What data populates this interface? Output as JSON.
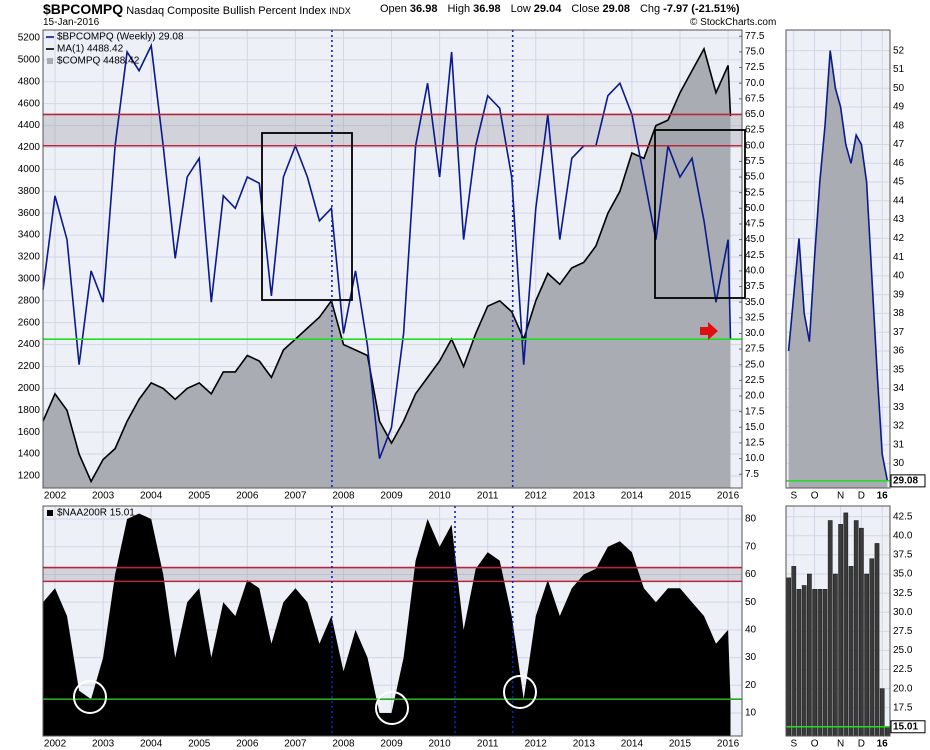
{
  "header": {
    "title": "$BPCOMPQ",
    "subtitle": "Nasdaq Composite Bullish Percent Index",
    "exchange": "INDX",
    "date": "15-Jan-2016",
    "quote": [
      {
        "label": "Open",
        "value": 36.98
      },
      {
        "label": "High",
        "value": 36.98
      },
      {
        "label": "Low",
        "value": 29.04
      },
      {
        "label": "Close",
        "value": 29.08
      },
      {
        "label": "Chg",
        "value": "-7.97 (-21.51%)"
      }
    ],
    "credit": "© StockCharts.com"
  },
  "chart_data": [
    {
      "type": "line",
      "legend": "upper left",
      "grid": true,
      "x": [
        2001.75,
        2002,
        2002.25,
        2002.5,
        2002.75,
        2003,
        2003.25,
        2003.5,
        2003.75,
        2004,
        2004.25,
        2004.5,
        2004.75,
        2005,
        2005.25,
        2005.5,
        2005.75,
        2006,
        2006.25,
        2006.5,
        2006.75,
        2007,
        2007.25,
        2007.5,
        2007.75,
        2008,
        2008.25,
        2008.5,
        2008.75,
        2009,
        2009.25,
        2009.5,
        2009.75,
        2010,
        2010.25,
        2010.5,
        2010.75,
        2011,
        2011.25,
        2011.5,
        2011.75,
        2012,
        2012.25,
        2012.5,
        2012.75,
        2013,
        2013.25,
        2013.5,
        2013.75,
        2014,
        2014.25,
        2014.5,
        2014.75,
        2015,
        2015.25,
        2015.5,
        2015.75,
        2016,
        2016.05
      ],
      "xlim": [
        2001.75,
        2016.29
      ],
      "xticks": [
        2002,
        2003,
        2004,
        2005,
        2006,
        2007,
        2008,
        2009,
        2010,
        2011,
        2012,
        2013,
        2014,
        2015,
        2016
      ],
      "ylim": [
        1090,
        5273
      ],
      "yticks": [
        1200,
        1400,
        1600,
        1800,
        2000,
        2200,
        2400,
        2600,
        2800,
        3000,
        3200,
        3400,
        3600,
        3800,
        4000,
        4200,
        4400,
        4600,
        4800,
        5000,
        5200
      ],
      "y2lim": [
        5.3,
        78.5
      ],
      "y2ticks": [
        7.5,
        {
          "value": 10,
          "label": "10.0"
        },
        12.5,
        {
          "value": 15,
          "label": "15.0"
        },
        17.5,
        {
          "value": 20,
          "label": "20.0"
        },
        22.5,
        {
          "value": 25,
          "label": "25.0"
        },
        27.5,
        {
          "value": 30,
          "label": "30.0"
        },
        32.5,
        {
          "value": 35,
          "label": "35.0"
        },
        37.5,
        {
          "value": 40,
          "label": "40.0"
        },
        42.5,
        {
          "value": 45,
          "label": "45.0"
        },
        47.5,
        {
          "value": 50,
          "label": "50.0"
        },
        52.5,
        {
          "value": 55,
          "label": "55.0"
        },
        57.5,
        {
          "value": 60,
          "label": "60.0"
        },
        62.5,
        {
          "value": 65,
          "label": "65.0"
        },
        67.5,
        {
          "value": 70,
          "label": "70.0"
        },
        72.5,
        {
          "value": 75,
          "label": "75.0"
        },
        77.5
      ],
      "bands": [
        {
          "from": 60,
          "to": 65,
          "axis": "y2",
          "color": "#9a9ca4"
        }
      ],
      "hlines": [
        {
          "value": 65,
          "axis": "y2",
          "color": "#b5283c"
        },
        {
          "value": 60,
          "axis": "y2",
          "color": "#b5283c"
        },
        {
          "value": 29.08,
          "axis": "y2",
          "color": "#22dd22"
        }
      ],
      "vlines": [
        2007.76,
        2011.52
      ],
      "series": [
        {
          "name": "$COMPQ 4488.42",
          "style": "area",
          "color": "#a9adb3",
          "axis": "y",
          "values": [
            1700,
            1950,
            1800,
            1400,
            1150,
            1350,
            1450,
            1700,
            1900,
            2050,
            2000,
            1900,
            2000,
            2050,
            1950,
            2150,
            2150,
            2300,
            2250,
            2100,
            2350,
            2450,
            2550,
            2650,
            2800,
            2400,
            2350,
            2300,
            1700,
            1500,
            1700,
            1950,
            2100,
            2250,
            2450,
            2200,
            2500,
            2750,
            2800,
            2700,
            2450,
            2800,
            3050,
            2950,
            3100,
            3150,
            3300,
            3600,
            3800,
            4150,
            4100,
            4400,
            4450,
            4700,
            4900,
            5100,
            4700,
            4950,
            4488.42
          ]
        },
        {
          "name": "MA(1) 4488.42",
          "style": "line",
          "color": "#000000",
          "axis": "y",
          "values": [
            1700,
            1950,
            1800,
            1400,
            1150,
            1350,
            1450,
            1700,
            1900,
            2050,
            2000,
            1900,
            2000,
            2050,
            1950,
            2150,
            2150,
            2300,
            2250,
            2100,
            2350,
            2450,
            2550,
            2650,
            2800,
            2400,
            2350,
            2300,
            1700,
            1500,
            1700,
            1950,
            2100,
            2250,
            2450,
            2200,
            2500,
            2750,
            2800,
            2700,
            2450,
            2800,
            3050,
            2950,
            3100,
            3150,
            3300,
            3600,
            3800,
            4150,
            4100,
            4400,
            4450,
            4700,
            4900,
            5100,
            4700,
            4950,
            4488.42
          ]
        },
        {
          "name": "$BPCOMPQ (Weekly) 29.08",
          "style": "line",
          "color": "#0a1a8c",
          "axis": "y2",
          "values": [
            37,
            52,
            45,
            25,
            40,
            35,
            60,
            75,
            72,
            76,
            60,
            42,
            55,
            58,
            35,
            52,
            50,
            55,
            54,
            36,
            55,
            60,
            55,
            48,
            50,
            30,
            40,
            28,
            10,
            15,
            30,
            60,
            70,
            55,
            75,
            45,
            60,
            68,
            66,
            55,
            25,
            50,
            65,
            45,
            58,
            60,
            60,
            68,
            70,
            65,
            55,
            45,
            60,
            55,
            58,
            48,
            35,
            45,
            29.08
          ]
        }
      ]
    },
    {
      "type": "line",
      "grid": true,
      "last_value_tag": true,
      "categories": [
        null,
        "S",
        null,
        null,
        null,
        "O",
        null,
        null,
        null,
        null,
        "N",
        null,
        null,
        null,
        "D",
        null,
        null,
        null,
        "16",
        null
      ],
      "ylim": [
        28.7,
        53.1
      ],
      "yticks": [
        30,
        31,
        32,
        33,
        34,
        35,
        36,
        37,
        38,
        39,
        40,
        41,
        42,
        43,
        44,
        45,
        46,
        47,
        48,
        49,
        50,
        51,
        52
      ],
      "hlines": [
        {
          "value": 29.08,
          "axis": "y",
          "color": "#22dd22"
        }
      ],
      "series": [
        {
          "style": "line",
          "color": "#0a1a8c",
          "fill": "#a9adb3",
          "axis": "y",
          "values": [
            36,
            39,
            42,
            38,
            36.5,
            41,
            45,
            48,
            52,
            50,
            49,
            47,
            46,
            47.5,
            47,
            45,
            40,
            35,
            30.5,
            29.08
          ]
        }
      ]
    },
    {
      "type": "area",
      "legend": "upper left",
      "grid": true,
      "yaxis_side": "right",
      "x": [
        2001.75,
        2002,
        2002.25,
        2002.5,
        2002.75,
        2003,
        2003.25,
        2003.5,
        2003.75,
        2004,
        2004.25,
        2004.5,
        2004.75,
        2005,
        2005.25,
        2005.5,
        2005.75,
        2006,
        2006.25,
        2006.5,
        2006.75,
        2007,
        2007.25,
        2007.5,
        2007.75,
        2008,
        2008.25,
        2008.5,
        2008.75,
        2009,
        2009.25,
        2009.5,
        2009.75,
        2010,
        2010.25,
        2010.5,
        2010.75,
        2011,
        2011.25,
        2011.5,
        2011.75,
        2012,
        2012.25,
        2012.5,
        2012.75,
        2013,
        2013.25,
        2013.5,
        2013.75,
        2014,
        2014.25,
        2014.5,
        2014.75,
        2015,
        2015.25,
        2015.5,
        2015.75,
        2016,
        2016.05
      ],
      "xlim": [
        2001.75,
        2016.29
      ],
      "xticks": [
        2002,
        2003,
        2004,
        2005,
        2006,
        2007,
        2008,
        2009,
        2010,
        2011,
        2012,
        2013,
        2014,
        2015,
        2016
      ],
      "ylim": [
        1.7,
        84.7
      ],
      "yticks": [
        10,
        20,
        30,
        40,
        50,
        60,
        70,
        80
      ],
      "bands": [
        {
          "from": 57.5,
          "to": 62.5,
          "axis": "y",
          "color": "#9a9ca4"
        }
      ],
      "hlines": [
        {
          "value": 62.5,
          "axis": "y",
          "color": "#b5283c"
        },
        {
          "value": 57.5,
          "axis": "y",
          "color": "#b5283c"
        },
        {
          "value": 15,
          "axis": "y",
          "color": "#22aa22"
        }
      ],
      "vlines": [
        2007.76,
        2010.32,
        2011.52
      ],
      "series": [
        {
          "name": "$NAA200R 15.01",
          "style": "area",
          "color": "#000000",
          "axis": "y",
          "values": [
            50,
            55,
            45,
            18,
            15,
            30,
            60,
            80,
            82,
            80,
            60,
            30,
            50,
            55,
            30,
            50,
            45,
            58,
            55,
            35,
            50,
            55,
            50,
            35,
            45,
            25,
            40,
            30,
            10,
            10,
            30,
            65,
            80,
            70,
            78,
            40,
            62,
            68,
            65,
            45,
            15,
            45,
            58,
            45,
            55,
            60,
            62,
            70,
            72,
            68,
            55,
            50,
            55,
            55,
            50,
            45,
            35,
            40,
            15.01
          ]
        }
      ]
    },
    {
      "type": "bar",
      "grid": true,
      "last_value_tag": true,
      "categories": [
        null,
        "S",
        null,
        null,
        null,
        "O",
        null,
        null,
        null,
        null,
        "N",
        null,
        null,
        null,
        "D",
        null,
        null,
        null,
        "16",
        null
      ],
      "ylim": [
        13.8,
        43.9
      ],
      "yticks": [
        17.5,
        {
          "value": 20,
          "label": "20.0"
        },
        22.5,
        {
          "value": 25,
          "label": "25.0"
        },
        27.5,
        {
          "value": 30,
          "label": "30.0"
        },
        32.5,
        {
          "value": 35,
          "label": "35.0"
        },
        37.5,
        {
          "value": 40,
          "label": "40.0"
        },
        42.5
      ],
      "hlines": [
        {
          "value": 15.01,
          "axis": "y",
          "color": "#22dd22"
        }
      ],
      "series": [
        {
          "style": "bar",
          "color": "#3a3a3a",
          "axis": "y",
          "values": [
            34.5,
            36,
            33,
            33.5,
            35,
            33,
            33,
            33,
            42,
            35,
            41.5,
            43,
            36,
            42,
            41,
            35,
            37,
            39,
            20,
            15.01
          ]
        }
      ]
    }
  ]
}
